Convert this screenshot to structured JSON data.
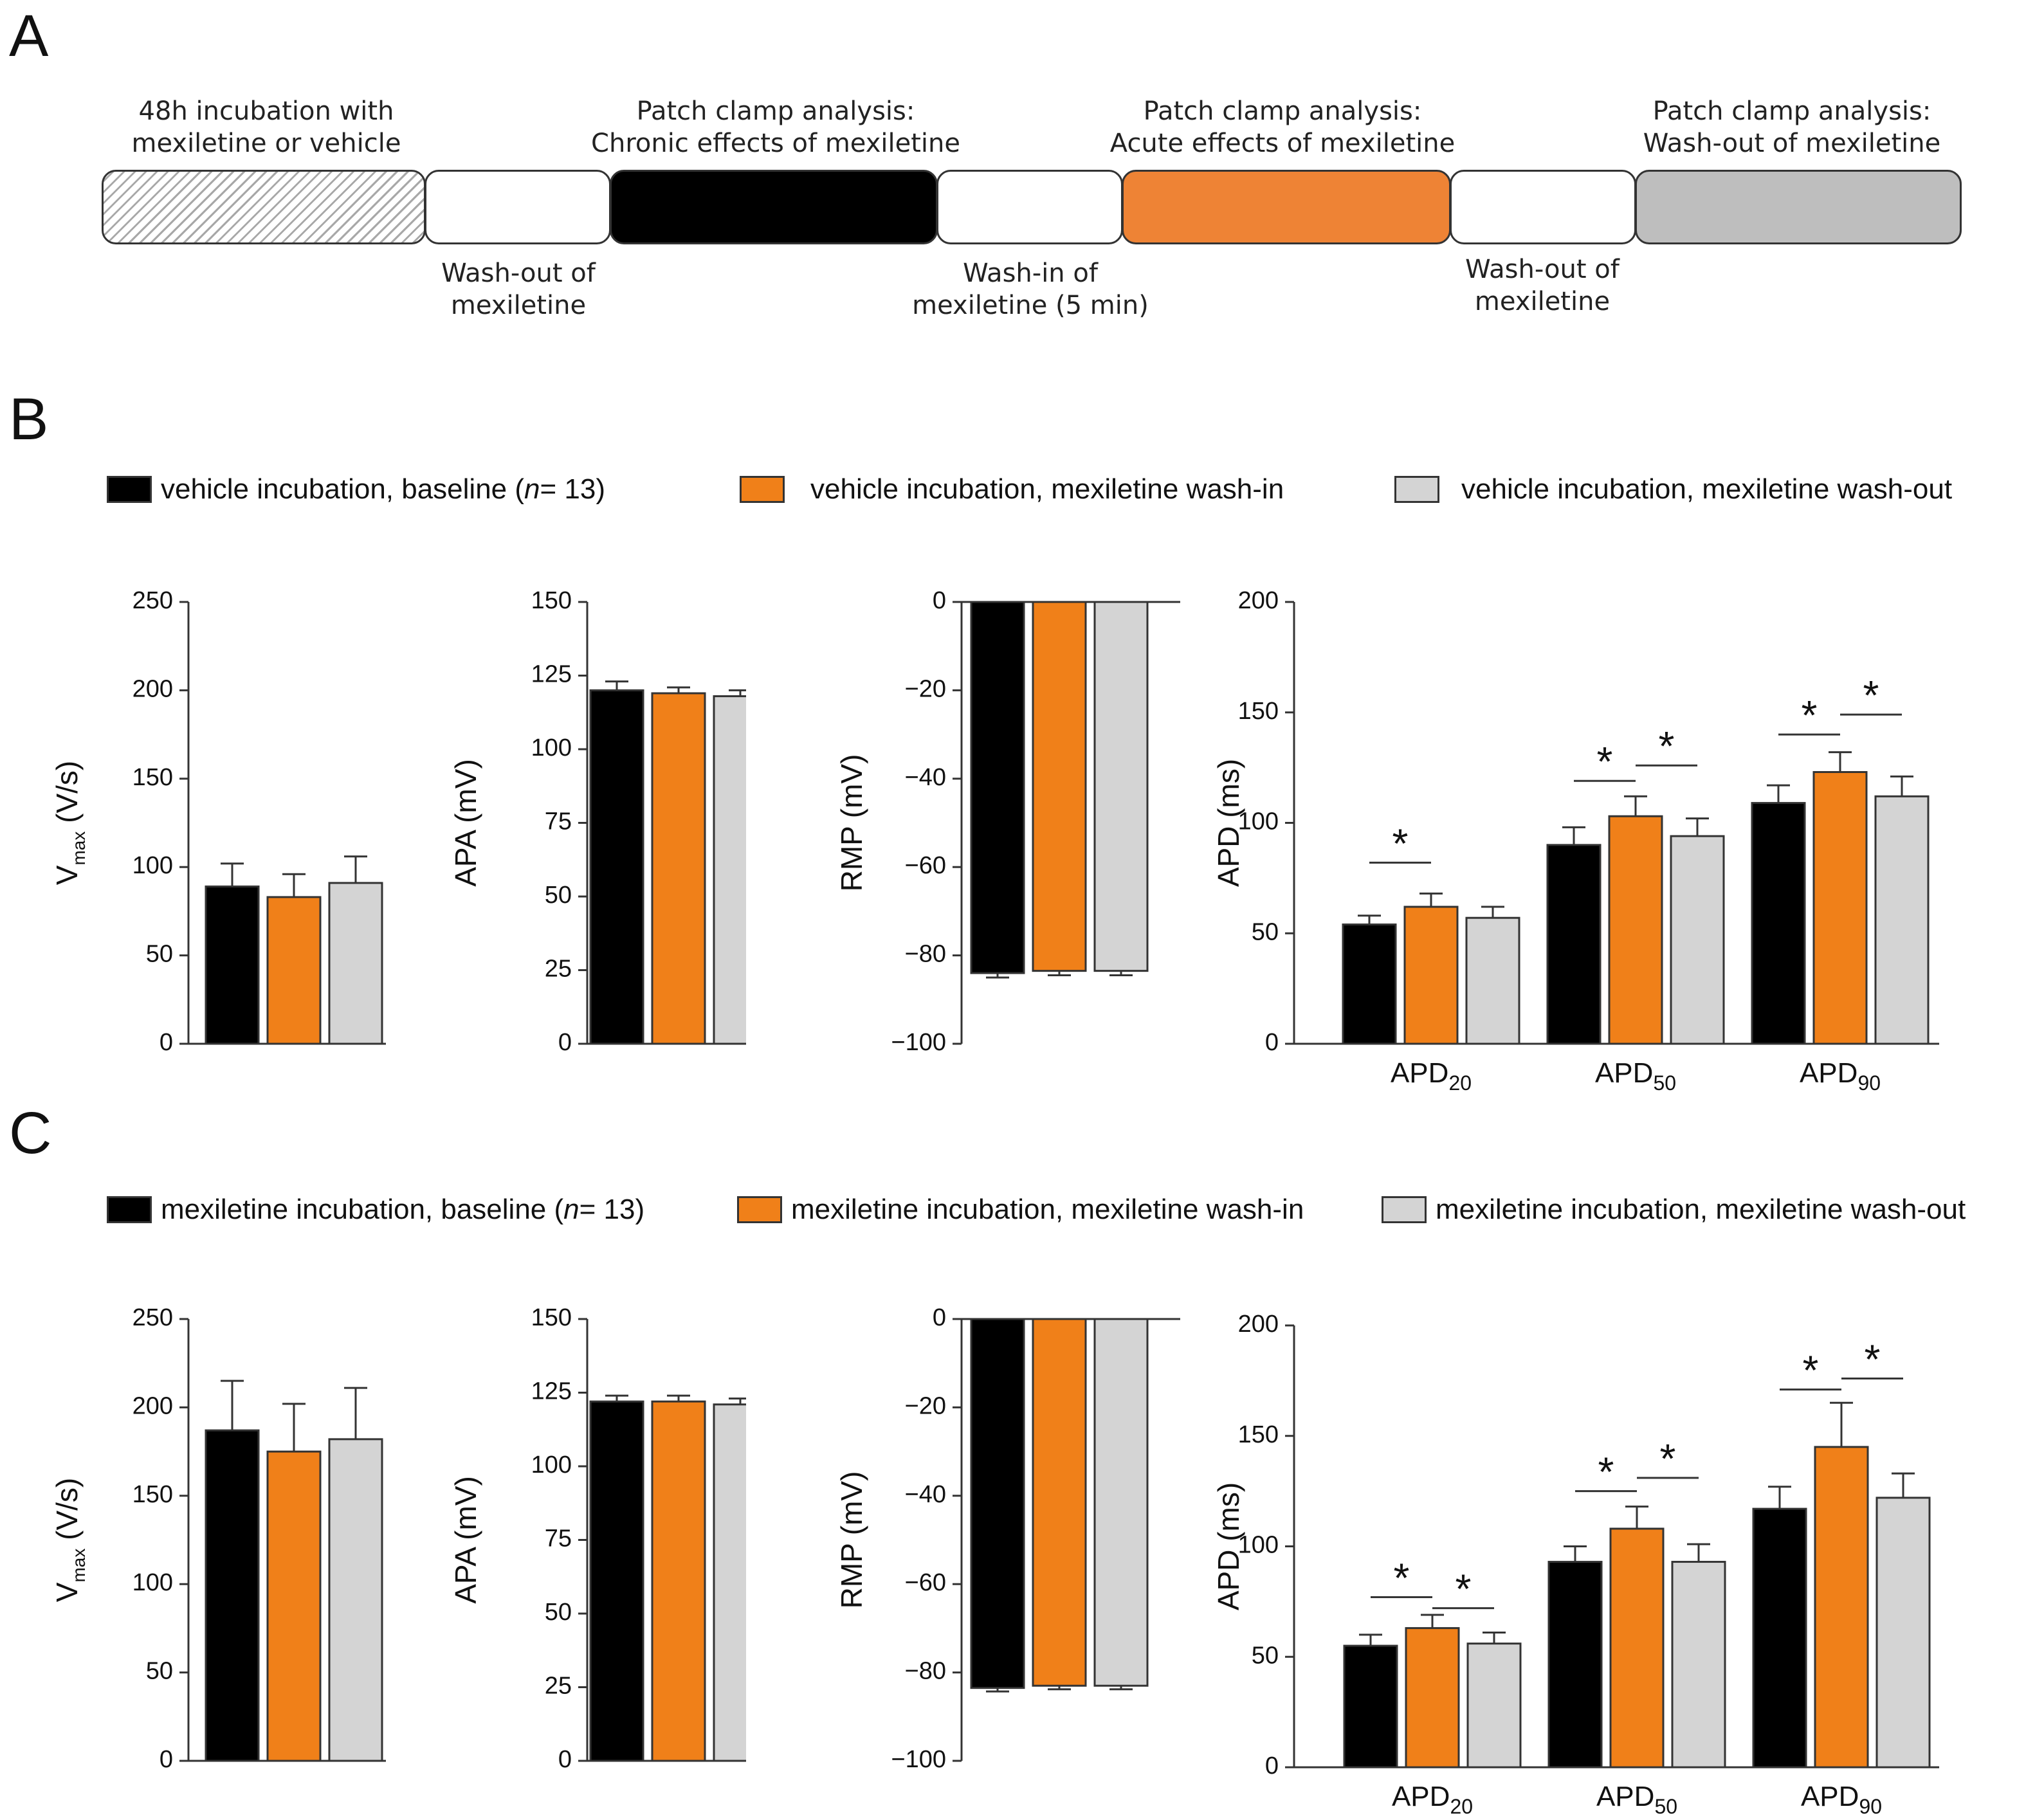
{
  "panels": {
    "a": "A",
    "b": "B",
    "c": "C"
  },
  "colors": {
    "black": "#000000",
    "orange": "#f08019",
    "gray": "#d4d4d4",
    "timeline_orange": "#ee8335",
    "timeline_gray": "#bebebe"
  },
  "timeline": {
    "top_labels": [
      {
        "line1": "48h incubation with",
        "line2": "mexiletine or vehicle"
      },
      {
        "line1": "Patch clamp analysis:",
        "line2": "Chronic effects of mexiletine"
      },
      {
        "line1": "Patch clamp analysis:",
        "line2": "Acute effects of mexiletine"
      },
      {
        "line1": "Patch clamp analysis:",
        "line2": "Wash-out of mexiletine"
      }
    ],
    "bottom_labels": [
      {
        "line1": "Wash-out of",
        "line2": "mexiletine"
      },
      {
        "line1": "Wash-in of",
        "line2": "mexiletine (5 min)"
      },
      {
        "line1": "Wash-out of",
        "line2": "mexiletine"
      }
    ]
  },
  "legend_b": {
    "item1_pre": "vehicle incubation, baseline (",
    "item1_n": "n",
    "item1_post": " = 13)",
    "item2": "vehicle incubation, mexiletine wash-in",
    "item3": "vehicle incubation, mexiletine wash-out"
  },
  "legend_c": {
    "item1_pre": "mexiletine incubation, baseline (",
    "item1_n": "n",
    "item1_post": " = 13)",
    "item2": "mexiletine incubation, mexiletine wash-in",
    "item3": "mexiletine incubation, mexiletine wash-out"
  },
  "chart_data": [
    {
      "id": "B-vmax",
      "type": "bar",
      "ylabel": "V",
      "ylabel_sub": "max",
      "ylabel_post": " (V/s)",
      "ylim": [
        0,
        250
      ],
      "yticks": [
        0,
        50,
        100,
        150,
        200,
        250
      ],
      "values": [
        89,
        83,
        91
      ],
      "errors": [
        13,
        13,
        15
      ]
    },
    {
      "id": "B-apa",
      "type": "bar",
      "ylabel": "APA (mV)",
      "ylim": [
        0,
        150
      ],
      "yticks": [
        0,
        25,
        50,
        75,
        100,
        125,
        150
      ],
      "values": [
        120,
        119,
        118
      ],
      "errors": [
        3,
        2,
        2
      ]
    },
    {
      "id": "B-rmp",
      "type": "bar",
      "ylabel": "RMP (mV)",
      "ylim": [
        -100,
        0
      ],
      "yticks": [
        0,
        -20,
        -40,
        -60,
        -80,
        -100
      ],
      "tick_labels": [
        "0",
        "−20",
        "−40",
        "−60",
        "−80",
        "−100"
      ],
      "values": [
        -84,
        -83.5,
        -83.5
      ],
      "errors": [
        1,
        1,
        1
      ]
    },
    {
      "id": "B-apd",
      "type": "bar",
      "ylabel": "APD (ms)",
      "ylim": [
        0,
        200
      ],
      "yticks": [
        0,
        50,
        100,
        150,
        200
      ],
      "groups": [
        {
          "name": "APD",
          "sub": "20"
        },
        {
          "name": "APD",
          "sub": "50"
        },
        {
          "name": "APD",
          "sub": "90"
        }
      ],
      "values": [
        [
          54,
          62,
          57
        ],
        [
          90,
          103,
          94
        ],
        [
          109,
          123,
          112
        ]
      ],
      "errors": [
        [
          4,
          6,
          5
        ],
        [
          8,
          9,
          8
        ],
        [
          8,
          9,
          9
        ]
      ],
      "significance": [
        {
          "group": 0,
          "from": 0,
          "to": 1,
          "y": 82,
          "label": "*"
        },
        {
          "group": 1,
          "from": 0,
          "to": 1,
          "y": 119,
          "label": "*"
        },
        {
          "group": 1,
          "from": 1,
          "to": 2,
          "y": 126,
          "label": "*"
        },
        {
          "group": 2,
          "from": 0,
          "to": 1,
          "y": 140,
          "label": "*"
        },
        {
          "group": 2,
          "from": 1,
          "to": 2,
          "y": 149,
          "label": "*"
        }
      ]
    },
    {
      "id": "C-vmax",
      "type": "bar",
      "ylabel": "V",
      "ylabel_sub": "max",
      "ylabel_post": " (V/s)",
      "ylim": [
        0,
        250
      ],
      "yticks": [
        0,
        50,
        100,
        150,
        200,
        250
      ],
      "values": [
        187,
        175,
        182
      ],
      "errors": [
        28,
        27,
        29
      ]
    },
    {
      "id": "C-apa",
      "type": "bar",
      "ylabel": "APA (mV)",
      "ylim": [
        0,
        150
      ],
      "yticks": [
        0,
        25,
        50,
        75,
        100,
        125,
        150
      ],
      "values": [
        122,
        122,
        121
      ],
      "errors": [
        2,
        2,
        2
      ]
    },
    {
      "id": "C-rmp",
      "type": "bar",
      "ylabel": "RMP (mV)",
      "ylim": [
        -100,
        0
      ],
      "yticks": [
        0,
        -20,
        -40,
        -60,
        -80,
        -100
      ],
      "tick_labels": [
        "0",
        "−20",
        "−40",
        "−60",
        "−80",
        "−100"
      ],
      "values": [
        -83.5,
        -83,
        -83
      ],
      "errors": [
        0.8,
        0.8,
        0.8
      ]
    },
    {
      "id": "C-apd",
      "type": "bar",
      "ylabel": "APD (ms)",
      "ylim": [
        0,
        200
      ],
      "yticks": [
        0,
        50,
        100,
        150,
        200
      ],
      "groups": [
        {
          "name": "APD",
          "sub": "20"
        },
        {
          "name": "APD",
          "sub": "50"
        },
        {
          "name": "APD",
          "sub": "90"
        }
      ],
      "values": [
        [
          55,
          63,
          56
        ],
        [
          93,
          108,
          93
        ],
        [
          117,
          145,
          122
        ]
      ],
      "errors": [
        [
          5,
          6,
          5
        ],
        [
          7,
          10,
          8
        ],
        [
          10,
          20,
          11
        ]
      ],
      "significance": [
        {
          "group": 0,
          "from": 0,
          "to": 1,
          "y": 77,
          "label": "*"
        },
        {
          "group": 0,
          "from": 1,
          "to": 2,
          "y": 72,
          "label": "*"
        },
        {
          "group": 1,
          "from": 0,
          "to": 1,
          "y": 125,
          "label": "*"
        },
        {
          "group": 1,
          "from": 1,
          "to": 2,
          "y": 131,
          "label": "*"
        },
        {
          "group": 2,
          "from": 0,
          "to": 1,
          "y": 171,
          "label": "*"
        },
        {
          "group": 2,
          "from": 1,
          "to": 2,
          "y": 176,
          "label": "*"
        }
      ]
    }
  ]
}
